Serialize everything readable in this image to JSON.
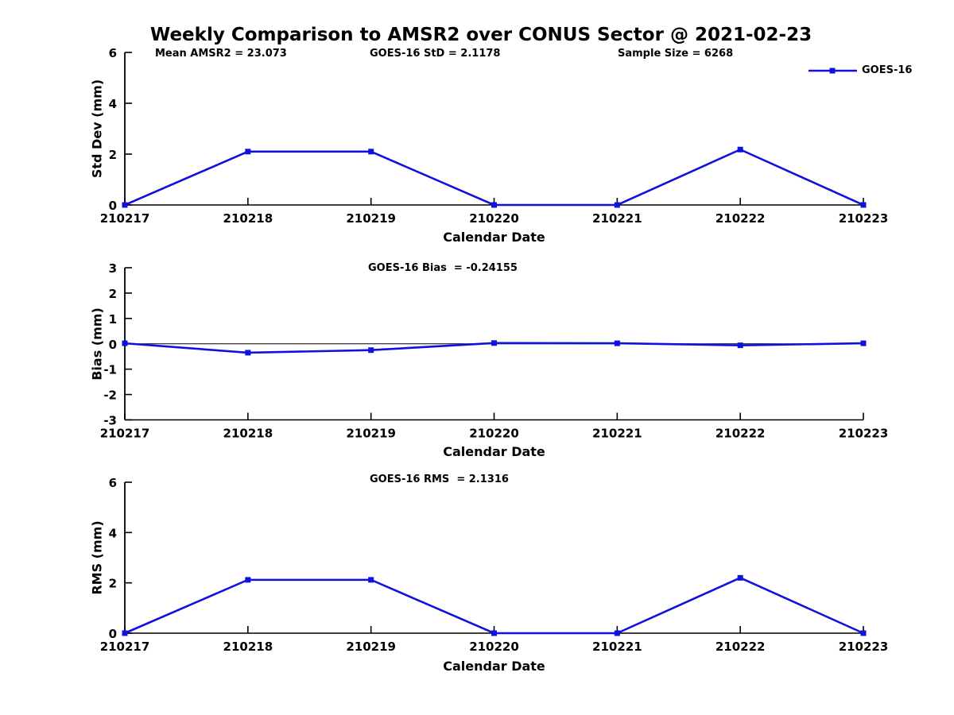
{
  "title": "Weekly Comparison to AMSR2 over CONUS Sector @ 2021-02-23",
  "colors": {
    "series_blue": "#1111dd",
    "axis_black": "#000000",
    "background": "#ffffff"
  },
  "chart_data": [
    {
      "type": "line",
      "title": "",
      "annotations": [
        "Mean AMSR2 = 23.073",
        "GOES-16 StD = 2.1178",
        "Sample Size = 6268"
      ],
      "xlabel": "Calendar Date",
      "ylabel": "Std Dev (mm)",
      "categories": [
        "210217",
        "210218",
        "210219",
        "210220",
        "210221",
        "210222",
        "210223"
      ],
      "series": [
        {
          "name": "GOES-16",
          "values": [
            0,
            2.1,
            2.1,
            0,
            0,
            2.18,
            0
          ]
        }
      ],
      "ylim": [
        0,
        6
      ],
      "yticks": [
        0,
        2,
        4,
        6
      ],
      "zero_line": false,
      "grid": false,
      "legend": {
        "label": "GOES-16",
        "position": "top-right"
      }
    },
    {
      "type": "line",
      "title": "GOES-16 Bias  = -0.24155",
      "annotations": [],
      "xlabel": "Calendar Date",
      "ylabel": "Bias (mm)",
      "categories": [
        "210217",
        "210218",
        "210219",
        "210220",
        "210221",
        "210222",
        "210223"
      ],
      "series": [
        {
          "name": "GOES-16",
          "values": [
            0.02,
            -0.35,
            -0.25,
            0.03,
            0.02,
            -0.06,
            0.02
          ]
        }
      ],
      "ylim": [
        -3,
        3
      ],
      "yticks": [
        -3,
        -2,
        -1,
        0,
        1,
        2,
        3
      ],
      "zero_line": true,
      "grid": false,
      "legend": null
    },
    {
      "type": "line",
      "title": "GOES-16 RMS  = 2.1316",
      "annotations": [],
      "xlabel": "Calendar Date",
      "ylabel": "RMS (mm)",
      "categories": [
        "210217",
        "210218",
        "210219",
        "210220",
        "210221",
        "210222",
        "210223"
      ],
      "series": [
        {
          "name": "GOES-16",
          "values": [
            0,
            2.12,
            2.12,
            0,
            0,
            2.2,
            0
          ]
        }
      ],
      "ylim": [
        0,
        6
      ],
      "yticks": [
        0,
        2,
        4,
        6
      ],
      "zero_line": false,
      "grid": false,
      "legend": null
    }
  ]
}
